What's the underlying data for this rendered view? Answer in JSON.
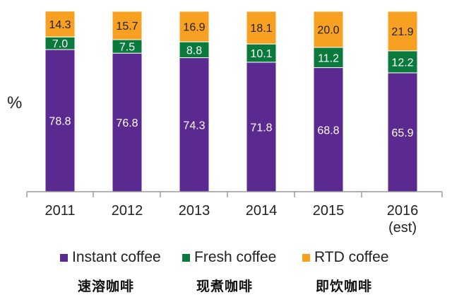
{
  "chart_data": {
    "type": "bar",
    "stacked": true,
    "ylabel": "%",
    "categories": [
      "2011",
      "2012",
      "2013",
      "2014",
      "2015",
      "2016\n(est)"
    ],
    "series": [
      {
        "name": "Instant coffee",
        "color": "#5b2a91",
        "values": [
          78.8,
          76.8,
          74.3,
          71.8,
          68.8,
          65.9
        ]
      },
      {
        "name": "Fresh coffee",
        "color": "#0a7a3c",
        "values": [
          7.0,
          7.5,
          8.8,
          10.1,
          11.2,
          12.2
        ]
      },
      {
        "name": "RTD coffee",
        "color": "#f7a021",
        "values": [
          14.3,
          15.7,
          16.9,
          18.1,
          20.0,
          21.9
        ]
      }
    ],
    "value_labels": [
      [
        "78.8",
        "76.8",
        "74.3",
        "71.8",
        "68.8",
        "65.9"
      ],
      [
        "7.0",
        "7.5",
        "8.8",
        "10.1",
        "11.2",
        "12.2"
      ],
      [
        "14.3",
        "15.7",
        "16.9",
        "18.1",
        "20.0",
        "21.9"
      ]
    ],
    "ylim": [
      0,
      100
    ],
    "grid": false,
    "legend_position": "bottom"
  },
  "legend_cn": [
    "速溶咖啡",
    "现煮咖啡",
    "即饮咖啡"
  ]
}
